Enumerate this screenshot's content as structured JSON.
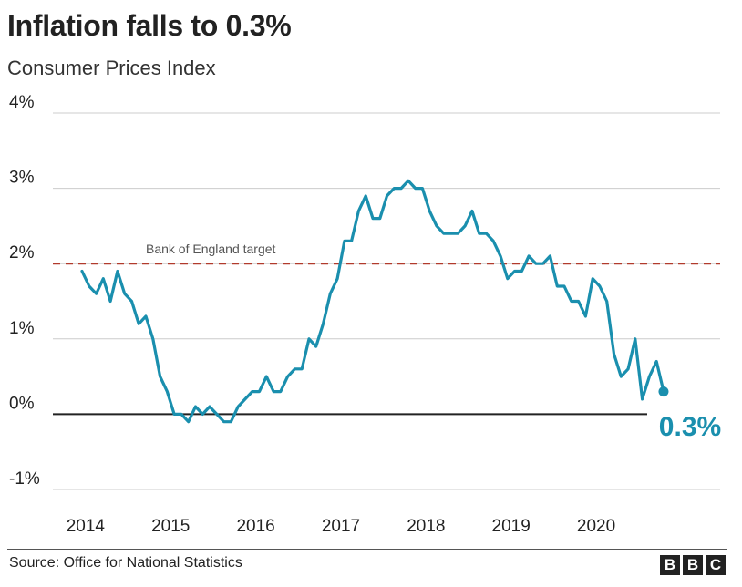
{
  "header": {
    "title": "Inflation falls to 0.3%",
    "subtitle": "Consumer Prices Index"
  },
  "footer": {
    "source": "Source: Office for National Statistics",
    "logo_letters": [
      "B",
      "B",
      "C"
    ]
  },
  "colors": {
    "series": "#1a8fae",
    "target": "#b13a2c",
    "grid": "#cccccc",
    "zero": "#222222",
    "text": "#222222"
  },
  "chart_data": {
    "type": "line",
    "title": "Inflation falls to 0.3%",
    "subtitle": "Consumer Prices Index",
    "xlabel": "",
    "ylabel": "",
    "ylim": [
      -1,
      4
    ],
    "y_ticks": [
      4,
      3,
      2,
      1,
      0,
      -1
    ],
    "y_tick_labels": [
      "4%",
      "3%",
      "2%",
      "1%",
      "0%",
      "-1%"
    ],
    "x_tick_labels": [
      "2014",
      "2015",
      "2016",
      "2017",
      "2018",
      "2019",
      "2020"
    ],
    "grid": true,
    "reference_line": {
      "label": "Bank of England target",
      "value": 2,
      "style": "dashed"
    },
    "end_label": "0.3%",
    "series": [
      {
        "start": "2014-01",
        "frequency": "monthly",
        "values": [
          1.9,
          1.7,
          1.6,
          1.8,
          1.5,
          1.9,
          1.6,
          1.5,
          1.2,
          1.3,
          1.0,
          0.5,
          0.3,
          0.0,
          0.0,
          -0.1,
          0.1,
          0.0,
          0.1,
          0.0,
          -0.1,
          -0.1,
          0.1,
          0.2,
          0.3,
          0.3,
          0.5,
          0.3,
          0.3,
          0.5,
          0.6,
          0.6,
          1.0,
          0.9,
          1.2,
          1.6,
          1.8,
          2.3,
          2.3,
          2.7,
          2.9,
          2.6,
          2.6,
          2.9,
          3.0,
          3.0,
          3.1,
          3.0,
          3.0,
          2.7,
          2.5,
          2.4,
          2.4,
          2.4,
          2.5,
          2.7,
          2.4,
          2.4,
          2.3,
          2.1,
          1.8,
          1.9,
          1.9,
          2.1,
          2.0,
          2.0,
          2.1,
          1.7,
          1.7,
          1.5,
          1.5,
          1.3,
          1.8,
          1.7,
          1.5,
          0.8,
          0.5,
          0.6,
          1.0,
          0.2,
          0.5,
          0.7,
          0.3
        ]
      }
    ]
  }
}
